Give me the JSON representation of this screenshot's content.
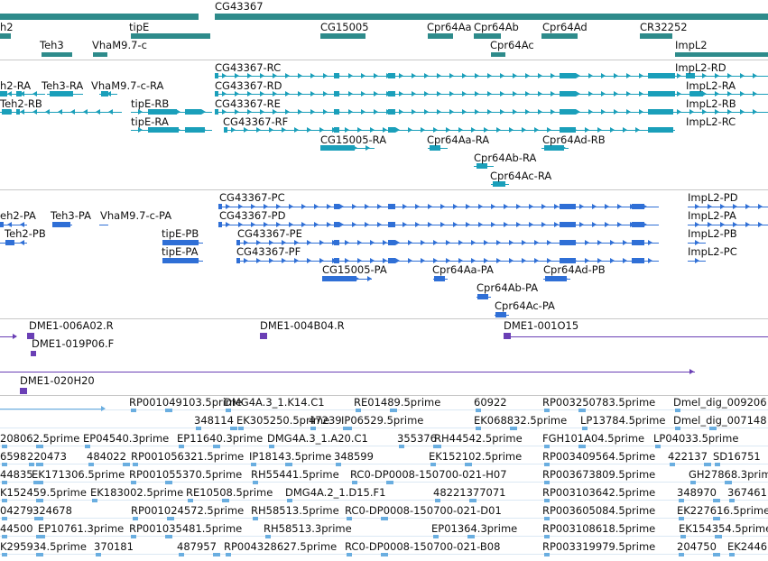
{
  "colors": {
    "gene": "#2e8b8b",
    "transcript": "#1a9fba",
    "protein": "#2f6fd6",
    "clone": "#6a3fb5",
    "est": "#6aaee0",
    "separator": "#c8c8c8"
  },
  "gene_track": {
    "labels": [
      {
        "text": "h2"
      },
      {
        "text": "tipE"
      },
      {
        "text": "CG43367"
      },
      {
        "text": "Teh3"
      },
      {
        "text": "VhaM9.7-c"
      },
      {
        "text": "CG15005"
      },
      {
        "text": "Cpr64Aa"
      },
      {
        "text": "Cpr64Ab"
      },
      {
        "text": "Cpr64Ad"
      },
      {
        "text": "CR32252"
      },
      {
        "text": "Cpr64Ac"
      },
      {
        "text": "ImpL2"
      }
    ]
  },
  "transcript_track": {
    "labels": [
      {
        "text": "CG43367-RC"
      },
      {
        "text": "ImpL2-RD"
      },
      {
        "text": "h2-RA"
      },
      {
        "text": "Teh3-RA"
      },
      {
        "text": "VhaM9.7-c-RA"
      },
      {
        "text": "CG43367-RD"
      },
      {
        "text": "ImpL2-RA"
      },
      {
        "text": "Teh2-RB"
      },
      {
        "text": "tipE-RB"
      },
      {
        "text": "CG43367-RE"
      },
      {
        "text": "ImpL2-RB"
      },
      {
        "text": "tipE-RA"
      },
      {
        "text": "CG43367-RF"
      },
      {
        "text": "ImpL2-RC"
      },
      {
        "text": "CG15005-RA"
      },
      {
        "text": "Cpr64Aa-RA"
      },
      {
        "text": "Cpr64Ad-RB"
      },
      {
        "text": "Cpr64Ab-RA"
      },
      {
        "text": "Cpr64Ac-RA"
      }
    ]
  },
  "protein_track": {
    "labels": [
      {
        "text": "CG43367-PC"
      },
      {
        "text": "ImpL2-PD"
      },
      {
        "text": "eh2-PA"
      },
      {
        "text": "Teh3-PA"
      },
      {
        "text": "VhaM9.7-c-PA"
      },
      {
        "text": "CG43367-PD"
      },
      {
        "text": "ImpL2-PA"
      },
      {
        "text": "Teh2-PB"
      },
      {
        "text": "tipE-PB"
      },
      {
        "text": "CG43367-PE"
      },
      {
        "text": "ImpL2-PB"
      },
      {
        "text": "tipE-PA"
      },
      {
        "text": "CG43367-PF"
      },
      {
        "text": "ImpL2-PC"
      },
      {
        "text": "CG15005-PA"
      },
      {
        "text": "Cpr64Aa-PA"
      },
      {
        "text": "Cpr64Ad-PB"
      },
      {
        "text": "Cpr64Ab-PA"
      },
      {
        "text": "Cpr64Ac-PA"
      }
    ]
  },
  "clone_track": {
    "labels": [
      {
        "text": "DME1-006A02.R"
      },
      {
        "text": "DME1-004B04.R"
      },
      {
        "text": "DME1-001O15"
      },
      {
        "text": "DME1-019P06.F"
      },
      {
        "text": "DME1-020H20"
      }
    ]
  },
  "est_track": {
    "rows": [
      [
        "RP001049103.5prime",
        "DMG4A.3_1.K14.C1",
        "RE01489.5prime",
        "60922",
        "RP003250783.5prime",
        "Dmel_dig_009206"
      ],
      [
        "348114",
        "EK305250.5prime",
        "47239",
        "IP06529.5prime",
        "EK068832.5prime",
        "LP13784.5prime",
        "Dmel_dig_007148"
      ],
      [
        "208062.5prime",
        "EP04540.3prime",
        "EP11640.3prime",
        "DMG4A.3_1.A20.C1",
        "355376",
        "RH44542.5prime",
        "FGH101A04.5prime",
        "LP04033.5prime"
      ],
      [
        "6598",
        "220473",
        "484022",
        "RP001056321.5prime",
        "IP18143.5prime",
        "348599",
        "EK152102.5prime",
        "RP003409564.5prime",
        "422137",
        "SD16751"
      ],
      [
        "44835",
        "EK171306.5prime",
        "RP001055370.5prime",
        "RH55441.5prime",
        "RC0-DP0008-150700-021-H07",
        "RP003673809.5prime",
        "GH27868.3prime"
      ],
      [
        "K152459.5prime",
        "EK183002.5prime",
        "RE10508.5prime",
        "DMG4A.2_1.D15.F1",
        "48221377071",
        "RP003103642.5prime",
        "348970",
        "367461"
      ],
      [
        "04279",
        "324678",
        "RP001024572.5prime",
        "RH58513.5prime",
        "RC0-DP0008-150700-021-D01",
        "RP003605084.5prime",
        "EK227616.5prime"
      ],
      [
        "44500",
        "EP10761.3prime",
        "RP001035481.5prime",
        "RH58513.3prime",
        "EP01364.3prime",
        "RP003108618.5prime",
        "EK154354.5prime"
      ],
      [
        "K295934.5prime",
        "370181",
        "487957",
        "RP004328627.5prime",
        "RC0-DP0008-150700-021-B08",
        "RP003319979.5prime",
        "204750",
        "EK24461"
      ]
    ]
  }
}
